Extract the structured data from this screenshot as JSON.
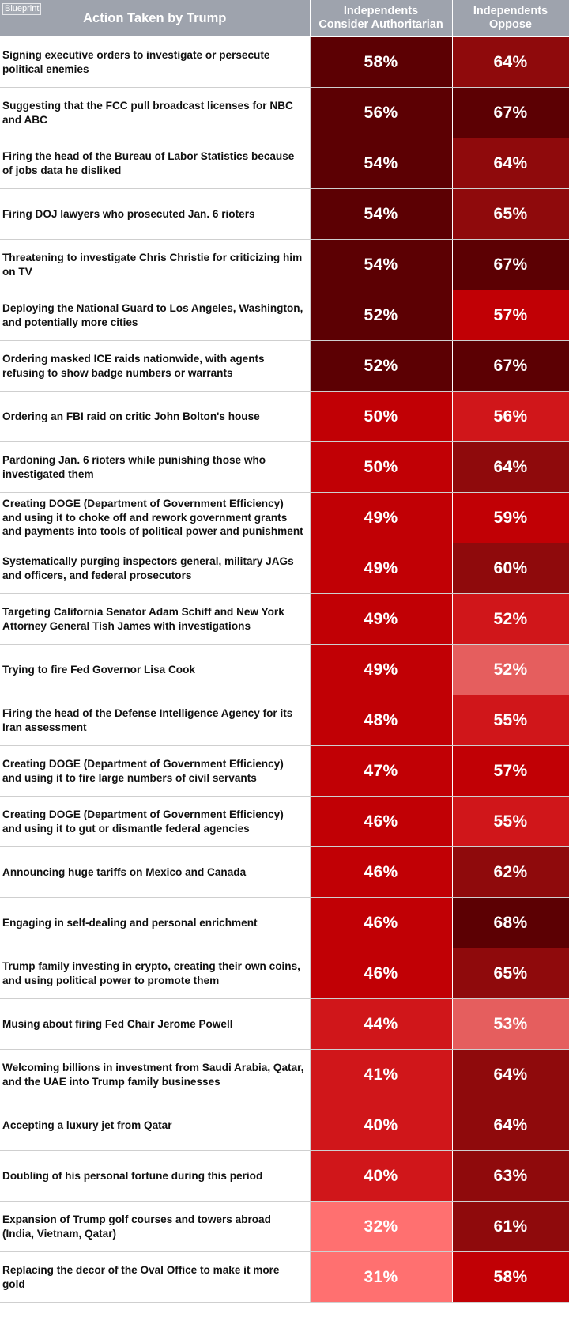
{
  "brand_label": "Blueprint",
  "headers": {
    "action": "Action Taken by Trump",
    "authoritarian_line1": "Independents",
    "authoritarian_line2": "Consider Authoritarian",
    "oppose_line1": "Independents",
    "oppose_line2": "Oppose"
  },
  "chart_data": {
    "type": "table",
    "columns": [
      "Action Taken by Trump",
      "Independents Consider Authoritarian",
      "Independents Oppose"
    ],
    "rows": [
      {
        "action": "Signing executive orders to investigate or persecute political enemies",
        "authoritarian": "58%",
        "oppose": "64%",
        "auth_color": "#5c0003",
        "opp_color": "#8f0a0c"
      },
      {
        "action": "Suggesting that the FCC pull broadcast licenses for NBC and ABC",
        "authoritarian": "56%",
        "oppose": "67%",
        "auth_color": "#5c0003",
        "opp_color": "#5c0003"
      },
      {
        "action": "Firing the head of the Bureau of Labor Statistics because of jobs data he disliked",
        "authoritarian": "54%",
        "oppose": "64%",
        "auth_color": "#5c0003",
        "opp_color": "#8f0a0c"
      },
      {
        "action": "Firing DOJ lawyers who prosecuted Jan. 6 rioters",
        "authoritarian": "54%",
        "oppose": "65%",
        "auth_color": "#5c0003",
        "opp_color": "#8f0a0c"
      },
      {
        "action": "Threatening to investigate Chris Christie for criticizing him on TV",
        "authoritarian": "54%",
        "oppose": "67%",
        "auth_color": "#5c0003",
        "opp_color": "#5c0003"
      },
      {
        "action": "Deploying the National Guard to Los Angeles, Washington, and potentially more cities",
        "authoritarian": "52%",
        "oppose": "57%",
        "auth_color": "#5c0003",
        "opp_color": "#c10005"
      },
      {
        "action": "Ordering masked ICE raids nationwide, with agents refusing to show badge numbers or warrants",
        "authoritarian": "52%",
        "oppose": "67%",
        "auth_color": "#5c0003",
        "opp_color": "#5c0003"
      },
      {
        "action": "Ordering an FBI raid on critic John Bolton's house",
        "authoritarian": "50%",
        "oppose": "56%",
        "auth_color": "#c10005",
        "opp_color": "#d0161a"
      },
      {
        "action": "Pardoning Jan. 6 rioters while punishing those who investigated them",
        "authoritarian": "50%",
        "oppose": "64%",
        "auth_color": "#c10005",
        "opp_color": "#8f0a0c"
      },
      {
        "action": "Creating DOGE (Department of Government Efficiency) and using it to choke off and rework government grants and payments into tools of political power and punishment",
        "authoritarian": "49%",
        "oppose": "59%",
        "auth_color": "#c10005",
        "opp_color": "#c10005"
      },
      {
        "action": "Systematically purging inspectors general, military JAGs and officers, and federal prosecutors",
        "authoritarian": "49%",
        "oppose": "60%",
        "auth_color": "#c10005",
        "opp_color": "#8f0a0c"
      },
      {
        "action": "Targeting California Senator Adam Schiff and New York Attorney General Tish James with investigations",
        "authoritarian": "49%",
        "oppose": "52%",
        "auth_color": "#c10005",
        "opp_color": "#d0161a"
      },
      {
        "action": "Trying to fire Fed Governor Lisa Cook",
        "authoritarian": "49%",
        "oppose": "52%",
        "auth_color": "#c10005",
        "opp_color": "#e55e5e"
      },
      {
        "action": "Firing the head of the Defense Intelligence Agency for its Iran assessment",
        "authoritarian": "48%",
        "oppose": "55%",
        "auth_color": "#c10005",
        "opp_color": "#d0161a"
      },
      {
        "action": "Creating DOGE (Department of Government Efficiency) and using it to fire large numbers of civil servants",
        "authoritarian": "47%",
        "oppose": "57%",
        "auth_color": "#c10005",
        "opp_color": "#c10005"
      },
      {
        "action": "Creating DOGE (Department of Government Efficiency) and using it to gut or dismantle federal agencies",
        "authoritarian": "46%",
        "oppose": "55%",
        "auth_color": "#c10005",
        "opp_color": "#d0161a"
      },
      {
        "action": "Announcing huge tariffs on Mexico and Canada",
        "authoritarian": "46%",
        "oppose": "62%",
        "auth_color": "#c10005",
        "opp_color": "#8f0a0c"
      },
      {
        "action": "Engaging in self-dealing and personal enrichment",
        "authoritarian": "46%",
        "oppose": "68%",
        "auth_color": "#c10005",
        "opp_color": "#5c0003"
      },
      {
        "action": "Trump family investing in crypto, creating their own coins, and using political power to promote them",
        "authoritarian": "46%",
        "oppose": "65%",
        "auth_color": "#c10005",
        "opp_color": "#8f0a0c"
      },
      {
        "action": "Musing about firing Fed Chair Jerome Powell",
        "authoritarian": "44%",
        "oppose": "53%",
        "auth_color": "#d0161a",
        "opp_color": "#e55e5e"
      },
      {
        "action": "Welcoming billions in investment from Saudi Arabia, Qatar, and the UAE into Trump family businesses",
        "authoritarian": "41%",
        "oppose": "64%",
        "auth_color": "#d0161a",
        "opp_color": "#8f0a0c"
      },
      {
        "action": "Accepting a luxury jet from Qatar",
        "authoritarian": "40%",
        "oppose": "64%",
        "auth_color": "#d0161a",
        "opp_color": "#8f0a0c"
      },
      {
        "action": "Doubling of his personal fortune during this period",
        "authoritarian": "40%",
        "oppose": "63%",
        "auth_color": "#d0161a",
        "opp_color": "#8f0a0c"
      },
      {
        "action": "Expansion of Trump golf courses and towers abroad (India, Vietnam, Qatar)",
        "authoritarian": "32%",
        "oppose": "61%",
        "auth_color": "#ff7070",
        "opp_color": "#8f0a0c"
      },
      {
        "action": "Replacing the decor of the Oval Office to make it more gold",
        "authoritarian": "31%",
        "oppose": "58%",
        "auth_color": "#ff7070",
        "opp_color": "#c10005"
      }
    ]
  }
}
